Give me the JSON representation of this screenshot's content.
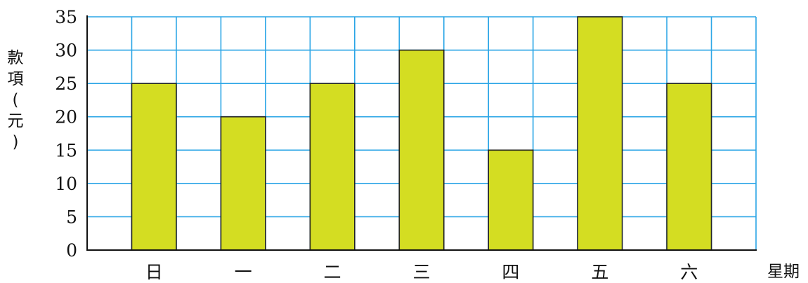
{
  "chart_data": {
    "type": "bar",
    "categories": [
      "日",
      "一",
      "二",
      "三",
      "四",
      "五",
      "六"
    ],
    "values": [
      25,
      20,
      25,
      30,
      15,
      35,
      25
    ],
    "xlabel": "星期",
    "ylabel": "款項(元)",
    "ylim": [
      0,
      35
    ],
    "yticks": [
      0,
      5,
      10,
      15,
      20,
      25,
      30,
      35
    ],
    "grid": true,
    "colors": {
      "bar": "#d4dd22",
      "grid": "#2aa5e6",
      "axis": "#111111"
    }
  }
}
